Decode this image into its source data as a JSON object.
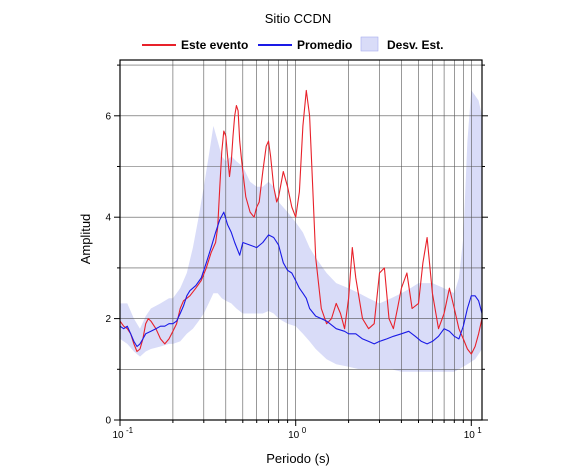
{
  "chart_data": {
    "type": "line",
    "title": "Sitio CCDN",
    "xlabel": "Periodo (s)",
    "ylabel": "Amplitud",
    "xscale": "log",
    "xlim": [
      0.1,
      11.5
    ],
    "ylim": [
      0,
      7.1
    ],
    "grid": true,
    "legend_position": "top",
    "x_ticks": [
      {
        "value": 0.1,
        "base": "10",
        "exp": "-1"
      },
      {
        "value": 1,
        "base": "10",
        "exp": "0"
      },
      {
        "value": 10,
        "base": "10",
        "exp": "1"
      }
    ],
    "y_ticks": [
      {
        "value": 0,
        "label": "0"
      },
      {
        "value": 2,
        "label": "2"
      },
      {
        "value": 4,
        "label": "4"
      },
      {
        "value": 6,
        "label": "6"
      }
    ],
    "legend": [
      {
        "label": "Este evento",
        "kind": "line",
        "color": "#e8212a"
      },
      {
        "label": "Promedio",
        "kind": "line",
        "color": "#1a1ae6"
      },
      {
        "label": "Desv. Est.",
        "kind": "band",
        "color": "#d9dcf8",
        "stroke": "#a8acf0"
      }
    ],
    "series": [
      {
        "name": "Este evento",
        "color": "#e8212a",
        "x": [
          0.1,
          0.105,
          0.11,
          0.115,
          0.12,
          0.125,
          0.13,
          0.135,
          0.14,
          0.145,
          0.15,
          0.16,
          0.17,
          0.18,
          0.19,
          0.2,
          0.21,
          0.22,
          0.23,
          0.24,
          0.25,
          0.27,
          0.29,
          0.31,
          0.33,
          0.35,
          0.36,
          0.37,
          0.38,
          0.39,
          0.4,
          0.41,
          0.42,
          0.43,
          0.44,
          0.45,
          0.46,
          0.47,
          0.48,
          0.49,
          0.5,
          0.52,
          0.55,
          0.58,
          0.6,
          0.62,
          0.65,
          0.68,
          0.7,
          0.72,
          0.75,
          0.78,
          0.8,
          0.85,
          0.9,
          0.95,
          1.0,
          1.05,
          1.1,
          1.15,
          1.2,
          1.25,
          1.3,
          1.4,
          1.5,
          1.6,
          1.7,
          1.8,
          1.9,
          2.0,
          2.1,
          2.2,
          2.4,
          2.6,
          2.8,
          3.0,
          3.2,
          3.4,
          3.6,
          3.8,
          4.0,
          4.3,
          4.6,
          5.0,
          5.3,
          5.6,
          6.0,
          6.5,
          7.0,
          7.5,
          8.0,
          8.5,
          9.0,
          9.5,
          10.0,
          10.5,
          11.0,
          11.5
        ],
        "values": [
          1.95,
          1.85,
          1.8,
          1.7,
          1.5,
          1.35,
          1.4,
          1.6,
          1.9,
          2.0,
          1.95,
          1.8,
          1.6,
          1.5,
          1.6,
          1.75,
          1.9,
          2.2,
          2.35,
          2.4,
          2.45,
          2.6,
          2.75,
          3.0,
          3.3,
          3.5,
          3.8,
          4.6,
          5.3,
          5.7,
          5.6,
          5.2,
          4.8,
          5.1,
          5.6,
          6.0,
          6.2,
          6.1,
          5.5,
          5.2,
          4.9,
          4.4,
          4.1,
          4.0,
          4.2,
          4.3,
          4.9,
          5.4,
          5.5,
          5.2,
          4.6,
          4.3,
          4.4,
          4.9,
          4.6,
          4.2,
          4.0,
          4.5,
          5.8,
          6.5,
          6.0,
          4.6,
          3.2,
          2.2,
          1.9,
          2.0,
          2.3,
          2.1,
          1.8,
          2.4,
          3.4,
          2.8,
          2.0,
          1.8,
          1.9,
          2.9,
          3.0,
          2.0,
          1.8,
          2.2,
          2.6,
          2.9,
          2.2,
          2.3,
          3.1,
          3.6,
          2.5,
          1.8,
          2.1,
          2.6,
          2.2,
          1.8,
          1.6,
          1.4,
          1.3,
          1.45,
          1.7,
          2.0
        ]
      },
      {
        "name": "Promedio",
        "color": "#1a1ae6",
        "x": [
          0.1,
          0.105,
          0.11,
          0.115,
          0.12,
          0.125,
          0.13,
          0.135,
          0.14,
          0.15,
          0.16,
          0.17,
          0.18,
          0.19,
          0.2,
          0.21,
          0.22,
          0.23,
          0.24,
          0.25,
          0.27,
          0.29,
          0.31,
          0.33,
          0.35,
          0.37,
          0.39,
          0.41,
          0.43,
          0.45,
          0.48,
          0.5,
          0.55,
          0.6,
          0.65,
          0.7,
          0.75,
          0.8,
          0.85,
          0.9,
          0.95,
          1.0,
          1.05,
          1.1,
          1.15,
          1.2,
          1.3,
          1.4,
          1.5,
          1.7,
          1.9,
          2.0,
          2.2,
          2.4,
          2.6,
          2.8,
          3.0,
          3.3,
          3.6,
          4.0,
          4.4,
          4.8,
          5.2,
          5.6,
          6.0,
          6.5,
          7.0,
          7.5,
          8.0,
          8.5,
          9.0,
          9.5,
          10.0,
          10.5,
          11.0,
          11.5
        ],
        "values": [
          1.85,
          1.8,
          1.85,
          1.7,
          1.55,
          1.45,
          1.5,
          1.6,
          1.7,
          1.75,
          1.8,
          1.85,
          1.85,
          1.9,
          1.9,
          1.95,
          2.1,
          2.25,
          2.45,
          2.55,
          2.65,
          2.8,
          3.1,
          3.4,
          3.7,
          3.95,
          4.1,
          3.85,
          3.7,
          3.5,
          3.25,
          3.5,
          3.45,
          3.4,
          3.5,
          3.65,
          3.6,
          3.45,
          3.1,
          2.95,
          2.9,
          2.75,
          2.6,
          2.5,
          2.4,
          2.2,
          2.05,
          2.0,
          1.95,
          1.8,
          1.75,
          1.7,
          1.7,
          1.6,
          1.55,
          1.5,
          1.55,
          1.6,
          1.65,
          1.7,
          1.75,
          1.65,
          1.55,
          1.5,
          1.55,
          1.65,
          1.8,
          1.75,
          1.65,
          1.6,
          1.85,
          2.2,
          2.45,
          2.45,
          2.35,
          2.1
        ]
      }
    ],
    "band": {
      "name": "Desv. Est.",
      "x": [
        0.1,
        0.11,
        0.12,
        0.13,
        0.14,
        0.15,
        0.17,
        0.19,
        0.2,
        0.22,
        0.24,
        0.26,
        0.28,
        0.3,
        0.32,
        0.34,
        0.36,
        0.38,
        0.4,
        0.43,
        0.46,
        0.5,
        0.55,
        0.6,
        0.65,
        0.7,
        0.75,
        0.8,
        0.9,
        1.0,
        1.1,
        1.2,
        1.3,
        1.5,
        1.7,
        2.0,
        2.3,
        2.6,
        3.0,
        3.5,
        4.0,
        4.5,
        5.0,
        5.5,
        6.0,
        7.0,
        8.0,
        8.5,
        9.0,
        9.5,
        10.0,
        10.5,
        11.0,
        11.5
      ],
      "upper": [
        2.3,
        2.3,
        2.0,
        1.8,
        2.05,
        2.2,
        2.3,
        2.4,
        2.4,
        2.6,
        2.9,
        3.4,
        4.0,
        4.6,
        5.2,
        5.8,
        5.5,
        5.2,
        5.1,
        5.2,
        5.1,
        5.0,
        4.7,
        4.6,
        4.6,
        4.7,
        4.6,
        4.3,
        4.1,
        3.9,
        3.7,
        3.4,
        3.2,
        2.9,
        2.7,
        2.6,
        2.5,
        2.4,
        2.3,
        2.4,
        2.5,
        2.6,
        2.7,
        2.7,
        2.7,
        2.6,
        2.5,
        2.8,
        3.6,
        5.5,
        6.5,
        6.4,
        6.3,
        6.0
      ],
      "lower": [
        1.6,
        1.5,
        1.35,
        1.25,
        1.35,
        1.4,
        1.45,
        1.5,
        1.5,
        1.55,
        1.7,
        1.8,
        1.95,
        2.1,
        2.3,
        2.5,
        2.5,
        2.4,
        2.35,
        2.3,
        2.2,
        2.1,
        2.1,
        2.1,
        2.1,
        2.15,
        2.1,
        2.0,
        1.9,
        1.85,
        1.7,
        1.55,
        1.4,
        1.2,
        1.1,
        1.05,
        1.0,
        1.0,
        1.0,
        1.0,
        0.95,
        0.95,
        0.95,
        0.95,
        0.95,
        0.95,
        0.95,
        1.0,
        1.05,
        1.1,
        1.15,
        1.2,
        1.3,
        1.4
      ]
    }
  }
}
